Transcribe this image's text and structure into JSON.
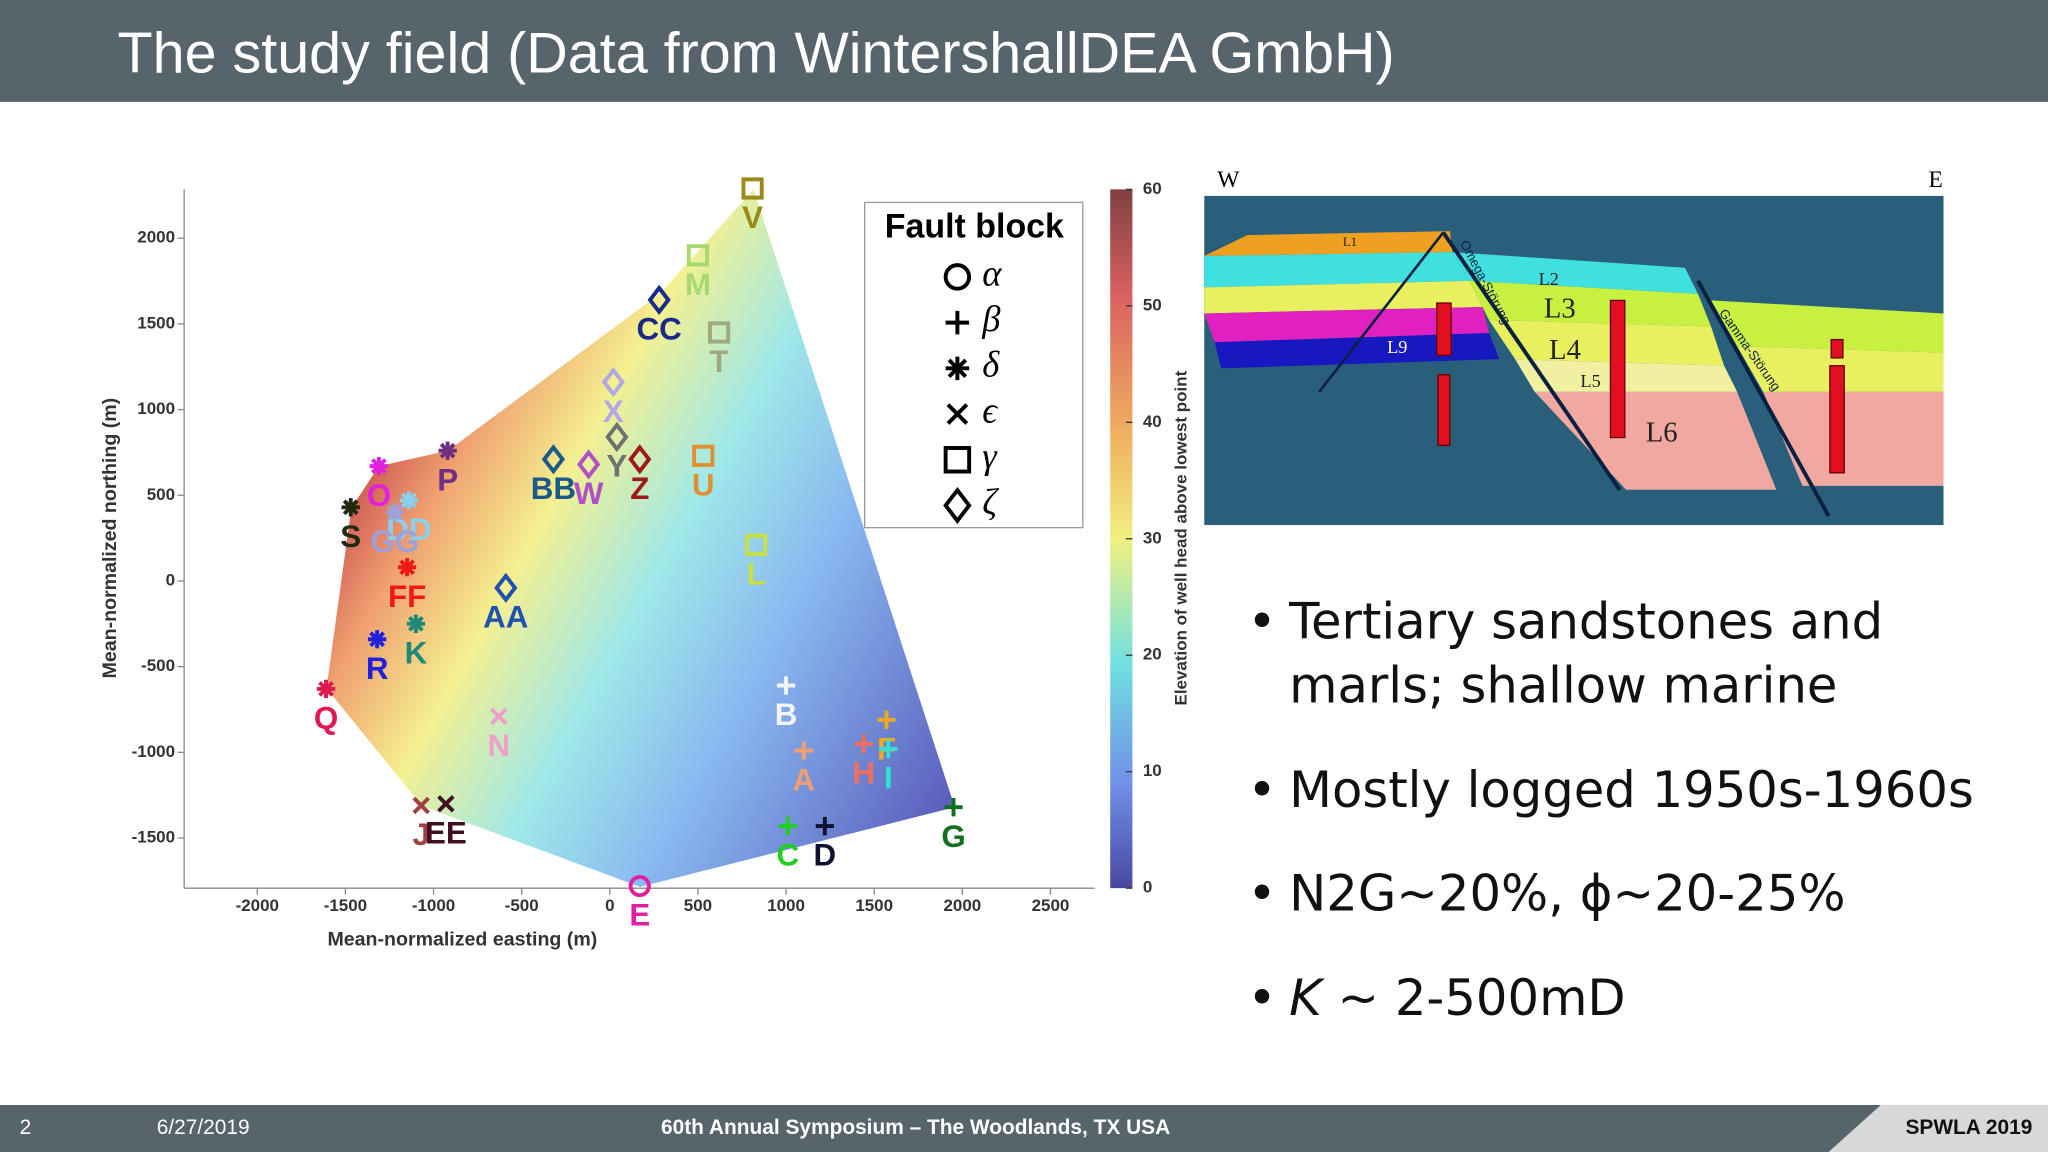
{
  "header": {
    "title": "The study field (Data from WintershallDEA GmbH)"
  },
  "chart_data": {
    "type": "scatter",
    "x_label": "Mean-normalized easting (m)",
    "y_label": "Mean-normalized northing (m)",
    "xlim": [
      -2400,
      2750
    ],
    "ylim": [
      -1800,
      2300
    ],
    "xticks": [
      -2000,
      -1500,
      -1000,
      -500,
      0,
      500,
      1000,
      1500,
      2000,
      2500
    ],
    "yticks": [
      -1500,
      -1000,
      -500,
      0,
      500,
      1000,
      1500,
      2000
    ],
    "legend_title": "Fault block",
    "legend": "upper right",
    "series": [
      {
        "name": "α",
        "marker": "circle",
        "labels": [
          "E"
        ],
        "x": [
          170
        ],
        "y": [
          -1780
        ],
        "colors": [
          "#e020a0"
        ]
      },
      {
        "name": "β",
        "marker": "plus",
        "labels": [
          "B",
          "F",
          "A",
          "H",
          "I",
          "G",
          "C",
          "D"
        ],
        "x": [
          1000,
          1570,
          1100,
          1440,
          1580,
          1950,
          1010,
          1220
        ],
        "y": [
          -610,
          -810,
          -990,
          -950,
          -980,
          -1320,
          -1430,
          -1430
        ],
        "colors": [
          "#f4f4f4",
          "#f0a820",
          "#f0a070",
          "#f07060",
          "#30e0d0",
          "#107020",
          "#20d020",
          "#101030"
        ]
      },
      {
        "name": "δ",
        "marker": "asterisk",
        "labels": [
          "O",
          "P",
          "S",
          "DD",
          "GG",
          "FF",
          "K",
          "R",
          "Q"
        ],
        "x": [
          -1310,
          -920,
          -1470,
          -1140,
          -1220,
          -1150,
          -1100,
          -1320,
          -1610
        ],
        "y": [
          670,
          760,
          430,
          470,
          400,
          80,
          -250,
          -340,
          -630
        ],
        "colors": [
          "#e020e0",
          "#703080",
          "#202a10",
          "#8ad0f0",
          "#a0a0d8",
          "#f01818",
          "#208878",
          "#2020e0",
          "#e01850"
        ]
      },
      {
        "name": "ϵ",
        "marker": "x",
        "labels": [
          "N",
          "J",
          "EE"
        ],
        "x": [
          -630,
          -1070,
          -930
        ],
        "y": [
          -790,
          -1310,
          -1300
        ],
        "colors": [
          "#f0a0c8",
          "#a04040",
          "#401020"
        ]
      },
      {
        "name": "γ",
        "marker": "square",
        "labels": [
          "V",
          "M",
          "T",
          "U",
          "L"
        ],
        "x": [
          810,
          500,
          620,
          530,
          830
        ],
        "y": [
          2290,
          1900,
          1450,
          730,
          210
        ],
        "colors": [
          "#9a8a1a",
          "#a8d870",
          "#a0a880",
          "#e09030",
          "#c8e040"
        ]
      },
      {
        "name": "ζ",
        "marker": "diamond",
        "labels": [
          "CC",
          "X",
          "BB",
          "W",
          "Y",
          "Z",
          "AA"
        ],
        "x": [
          280,
          20,
          -320,
          -120,
          40,
          170,
          -590
        ],
        "y": [
          1640,
          1160,
          710,
          680,
          840,
          710,
          -40
        ],
        "colors": [
          "#1a2a8a",
          "#b0a8e8",
          "#1a5a8a",
          "#b050c8",
          "#707070",
          "#a01818",
          "#2050b0"
        ]
      }
    ],
    "colorbar": {
      "label": "Elevation of well head above lowest point",
      "lim": [
        0,
        60
      ],
      "ticks": [
        0,
        10,
        20,
        30,
        40,
        50,
        60
      ]
    }
  },
  "cross_section": {
    "west": "W",
    "east": "E",
    "layers": [
      "L1",
      "L2",
      "L3",
      "L4",
      "L5",
      "L6",
      "L9"
    ],
    "faults": [
      "Omega-Störung",
      "Gamma-Störung"
    ]
  },
  "bullets": [
    "Tertiary sandstones and marls; shallow marine",
    "Mostly logged 1950s-1960s",
    "N2G~20%, ϕ~20-25%",
    {
      "symbol": "K",
      "text": "~ 2-500mD"
    }
  ],
  "footer": {
    "page": "2",
    "date": "6/27/2019",
    "event": "60th Annual Symposium – The Woodlands, TX USA",
    "brand": "SPWLA 2019"
  }
}
